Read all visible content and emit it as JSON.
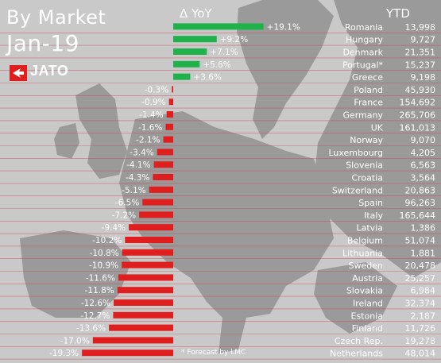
{
  "header": {
    "title_line1": "By Market",
    "title_line2": "Jan-19",
    "logo_text": "JATO",
    "yoy_heading": "Δ YoY",
    "ytd_heading": "YTD",
    "footnote": "* Forecast by LMC"
  },
  "colors": {
    "positive": "#1fb24a",
    "negative": "#e01e1e",
    "background": "#c9c9c9",
    "map_land": "#9a9a9a",
    "row_line": "#d23a3a",
    "text": "#ffffff",
    "logo_red": "#e01e1e"
  },
  "chart_data": {
    "type": "bar",
    "orientation": "horizontal",
    "value_unit": "%",
    "categories": [
      "Romania",
      "Hungary",
      "Denmark",
      "Portugal*",
      "Greece",
      "Poland",
      "France",
      "Germany",
      "UK",
      "Norway",
      "Luxembourg",
      "Slovenia",
      "Croatia",
      "Switzerland",
      "Spain",
      "Italy",
      "Latvia",
      "Belgium",
      "Lithuania",
      "Sweden",
      "Austria",
      "Slovakia",
      "Ireland",
      "Estonia",
      "Finland",
      "Czech Rep.",
      "Netherlands"
    ],
    "values": [
      19.1,
      9.2,
      7.1,
      5.6,
      3.6,
      -0.3,
      -0.9,
      -1.4,
      -1.6,
      -2.1,
      -3.4,
      -4.1,
      -4.3,
      -5.1,
      -6.5,
      -7.2,
      -9.4,
      -10.2,
      -10.8,
      -10.9,
      -11.6,
      -11.8,
      -12.6,
      -12.7,
      -13.6,
      -17.0,
      -19.3
    ],
    "value_labels": [
      "+19.1%",
      "+9.2%",
      "+7.1%",
      "+5.6%",
      "+3.6%",
      "-0.3%",
      "-0.9%",
      "-1.4%",
      "-1.6%",
      "-2.1%",
      "-3.4%",
      "-4.1%",
      "-4.3%",
      "-5.1%",
      "-6.5%",
      "-7.2%",
      "-9.4%",
      "-10.2%",
      "-10.8%",
      "-10.9%",
      "-11.6%",
      "-11.8%",
      "-12.6%",
      "-12.7%",
      "-13.6%",
      "-17.0%",
      "-19.3%"
    ],
    "ytd": [
      "13,998",
      "9,727",
      "21,351",
      "15,237",
      "9,198",
      "45,930",
      "154,692",
      "265,706",
      "161,013",
      "9,070",
      "4,205",
      "6,563",
      "3,564",
      "20,863",
      "96,263",
      "165,644",
      "1,386",
      "51,074",
      "1,881",
      "20,478",
      "25,257",
      "6,984",
      "32,374",
      "2,187",
      "11,726",
      "19,278",
      "48,014"
    ],
    "legend": "none",
    "grid": false
  }
}
